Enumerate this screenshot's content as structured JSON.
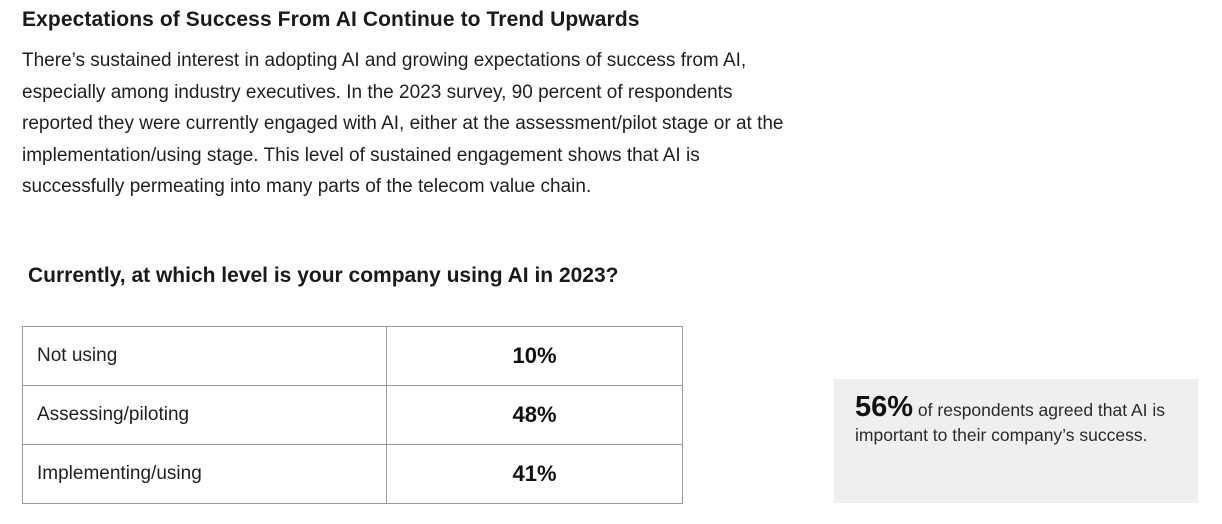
{
  "heading": "Expectations of Success From AI Continue to Trend Upwards",
  "body_text": "There’s sustained interest in adopting AI and growing expectations of success from AI, especially among industry executives. In the 2023 survey, 90 percent of respondents reported they were currently engaged with AI, either at the assessment/pilot stage or at the implementation/using stage. This level of sustained engagement shows that AI is successfully permeating into many parts of the telecom value chain.",
  "question": "Currently, at which level is your company using AI in 2023?",
  "table": {
    "rows": [
      {
        "label": "Not using",
        "value": "10%"
      },
      {
        "label": "Assessing/piloting",
        "value": "48%"
      },
      {
        "label": "Implementing/using",
        "value": "41%"
      }
    ]
  },
  "callout": {
    "stat": "56%",
    "text": "of respondents agreed that AI is important to their company’s success."
  }
}
